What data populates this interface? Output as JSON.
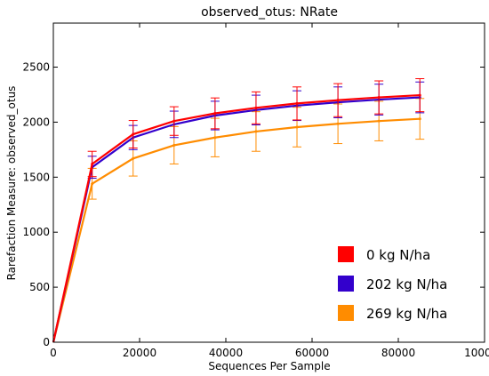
{
  "chart_data": {
    "type": "line",
    "title": "observed_otus: NRate",
    "xlabel": "Sequences Per Sample",
    "ylabel": "Rarefaction Measure: observed_otus",
    "xlim": [
      0,
      100000
    ],
    "ylim": [
      0,
      2900
    ],
    "x_ticks": [
      0,
      20000,
      40000,
      60000,
      80000,
      100000
    ],
    "x_tick_labels": [
      "0",
      "20000",
      "40000",
      "60000",
      "80000",
      "100000"
    ],
    "y_ticks": [
      0,
      500,
      1000,
      1500,
      2000,
      2500
    ],
    "y_tick_labels": [
      "0",
      "500",
      "1000",
      "1500",
      "2000",
      "2500"
    ],
    "grid": false,
    "legend_position": "bottom-right",
    "x": [
      0,
      9000,
      18500,
      28000,
      37500,
      47000,
      56500,
      66000,
      75500,
      85000
    ],
    "series": [
      {
        "name": "0 kg N/ha",
        "color": "#ff0000",
        "values": [
          0,
          1620,
          1890,
          2010,
          2080,
          2130,
          2170,
          2200,
          2225,
          2245
        ],
        "err": [
          0,
          115,
          125,
          130,
          140,
          145,
          150,
          150,
          150,
          150
        ]
      },
      {
        "name": "202 kg N/ha",
        "color": "#3300cc",
        "values": [
          0,
          1590,
          1860,
          1980,
          2060,
          2110,
          2150,
          2180,
          2205,
          2225
        ],
        "err": [
          0,
          100,
          110,
          120,
          130,
          135,
          135,
          140,
          140,
          140
        ]
      },
      {
        "name": "269 kg N/ha",
        "color": "#ff8c00",
        "values": [
          0,
          1440,
          1670,
          1790,
          1860,
          1915,
          1955,
          1985,
          2010,
          2030
        ],
        "err": [
          0,
          140,
          160,
          170,
          175,
          180,
          180,
          180,
          180,
          185
        ]
      }
    ]
  }
}
